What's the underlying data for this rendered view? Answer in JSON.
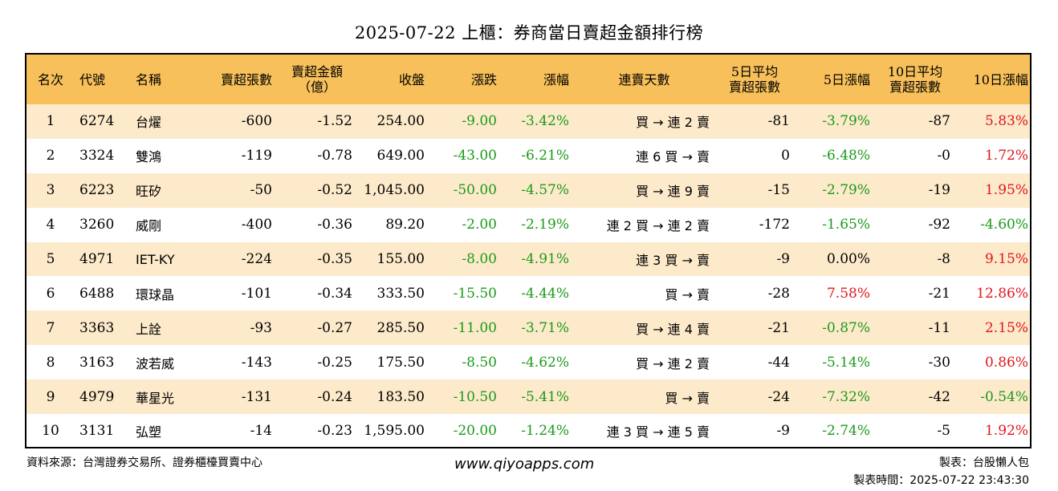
{
  "title": "2025-07-22 上櫃：券商當日賣超金額排行榜",
  "colors": {
    "header_bg": "#f8c05a",
    "row_alt_bg": "#fdeacb",
    "negative": "#1a9a1a",
    "positive": "#e0151c"
  },
  "headers": {
    "rank": "名次",
    "code": "代號",
    "name": "名稱",
    "sell_lots": "賣超張數",
    "sell_amount_1": "賣超金額",
    "sell_amount_2": "（億）",
    "close": "收盤",
    "change": "漲跌",
    "change_pct": "漲幅",
    "streak": "連賣天數",
    "avg5_1": "5日平均",
    "avg5_2": "賣超張數",
    "pct5": "5日漲幅",
    "avg10_1": "10日平均",
    "avg10_2": "賣超張數",
    "pct10": "10日漲幅"
  },
  "rows": [
    {
      "rank": "1",
      "code": "6274",
      "name": "台燿",
      "sell_lots": "-600",
      "sell_amount": "-1.52",
      "close": "254.00",
      "change": "-9.00",
      "change_pct": "-3.42%",
      "streak": "買 → 連 2 賣",
      "avg5": "-81",
      "pct5": "-3.79%",
      "avg10": "-87",
      "pct10": "5.83%"
    },
    {
      "rank": "2",
      "code": "3324",
      "name": "雙鴻",
      "sell_lots": "-119",
      "sell_amount": "-0.78",
      "close": "649.00",
      "change": "-43.00",
      "change_pct": "-6.21%",
      "streak": "連 6 買 → 賣",
      "avg5": "0",
      "pct5": "-6.48%",
      "avg10": "-0",
      "pct10": "1.72%"
    },
    {
      "rank": "3",
      "code": "6223",
      "name": "旺矽",
      "sell_lots": "-50",
      "sell_amount": "-0.52",
      "close": "1,045.00",
      "change": "-50.00",
      "change_pct": "-4.57%",
      "streak": "買 → 連 9 賣",
      "avg5": "-15",
      "pct5": "-2.79%",
      "avg10": "-19",
      "pct10": "1.95%"
    },
    {
      "rank": "4",
      "code": "3260",
      "name": "威剛",
      "sell_lots": "-400",
      "sell_amount": "-0.36",
      "close": "89.20",
      "change": "-2.00",
      "change_pct": "-2.19%",
      "streak": "連 2 買 → 連 2 賣",
      "avg5": "-172",
      "pct5": "-1.65%",
      "avg10": "-92",
      "pct10": "-4.60%"
    },
    {
      "rank": "5",
      "code": "4971",
      "name": "IET-KY",
      "sell_lots": "-224",
      "sell_amount": "-0.35",
      "close": "155.00",
      "change": "-8.00",
      "change_pct": "-4.91%",
      "streak": "連 3 買 → 賣",
      "avg5": "-9",
      "pct5": "0.00%",
      "avg10": "-8",
      "pct10": "9.15%"
    },
    {
      "rank": "6",
      "code": "6488",
      "name": "環球晶",
      "sell_lots": "-101",
      "sell_amount": "-0.34",
      "close": "333.50",
      "change": "-15.50",
      "change_pct": "-4.44%",
      "streak": "買 → 賣",
      "avg5": "-28",
      "pct5": "7.58%",
      "avg10": "-21",
      "pct10": "12.86%"
    },
    {
      "rank": "7",
      "code": "3363",
      "name": "上詮",
      "sell_lots": "-93",
      "sell_amount": "-0.27",
      "close": "285.50",
      "change": "-11.00",
      "change_pct": "-3.71%",
      "streak": "買 → 連 4 賣",
      "avg5": "-21",
      "pct5": "-0.87%",
      "avg10": "-11",
      "pct10": "2.15%"
    },
    {
      "rank": "8",
      "code": "3163",
      "name": "波若威",
      "sell_lots": "-143",
      "sell_amount": "-0.25",
      "close": "175.50",
      "change": "-8.50",
      "change_pct": "-4.62%",
      "streak": "買 → 連 2 賣",
      "avg5": "-44",
      "pct5": "-5.14%",
      "avg10": "-30",
      "pct10": "0.86%"
    },
    {
      "rank": "9",
      "code": "4979",
      "name": "華星光",
      "sell_lots": "-131",
      "sell_amount": "-0.24",
      "close": "183.50",
      "change": "-10.50",
      "change_pct": "-5.41%",
      "streak": "買 → 賣",
      "avg5": "-24",
      "pct5": "-7.32%",
      "avg10": "-42",
      "pct10": "-0.54%"
    },
    {
      "rank": "10",
      "code": "3131",
      "name": "弘塑",
      "sell_lots": "-14",
      "sell_amount": "-0.23",
      "close": "1,595.00",
      "change": "-20.00",
      "change_pct": "-1.24%",
      "streak": "連 3 買 → 連 5 賣",
      "avg5": "-9",
      "pct5": "-2.74%",
      "avg10": "-5",
      "pct10": "1.92%"
    }
  ],
  "footer": {
    "source": "資料來源：台灣證券交易所、證券櫃檯買賣中心",
    "website": "www.qiyoapps.com",
    "author": "製表：台股懶人包",
    "time": "製表時間：2025-07-22 23:43:30"
  }
}
